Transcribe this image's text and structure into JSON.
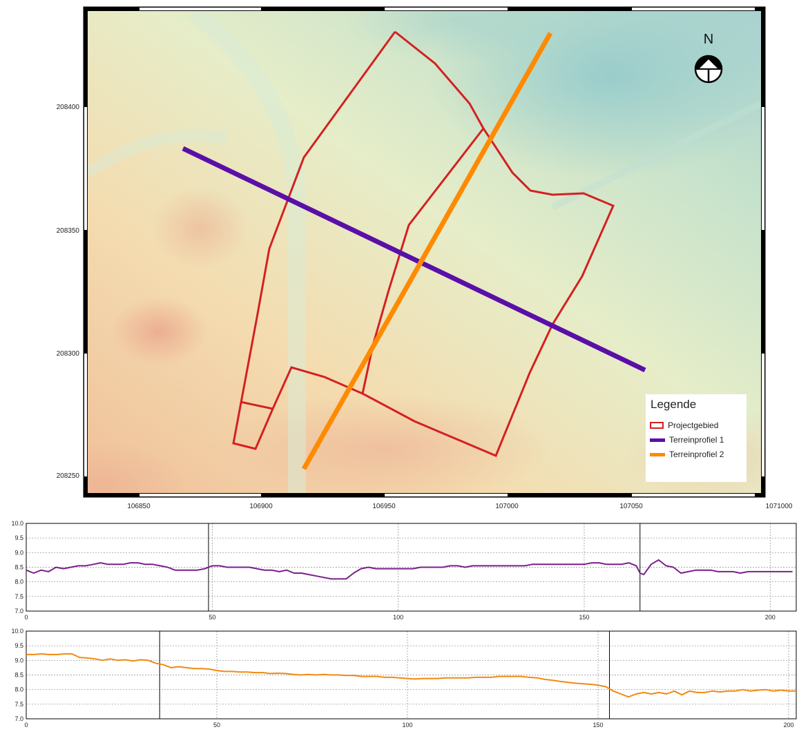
{
  "map": {
    "x_ticks": [
      "106850",
      "106900",
      "106950",
      "107000",
      "107050",
      "1071000"
    ],
    "y_ticks": [
      "208400",
      "208350",
      "208300",
      "208250"
    ],
    "north_label": "N",
    "colors": {
      "projectgebied": "#d42020",
      "terreinprofiel_1": "#5a0fa8",
      "terreinprofiel_2": "#ff8a00"
    }
  },
  "legend": {
    "title": "Legende",
    "items": [
      {
        "label": "Projectgebied",
        "symbol": "outline-box",
        "color": "#d42020"
      },
      {
        "label": "Terreinprofiel 1",
        "symbol": "line",
        "color": "#5a0fa8"
      },
      {
        "label": "Terreinprofiel 2",
        "symbol": "line",
        "color": "#ff8a00"
      }
    ]
  },
  "chart_data": [
    {
      "type": "line",
      "series": [
        {
          "color": "#7a1f8a",
          "x": [
            0,
            2,
            4,
            6,
            8,
            10,
            12,
            14,
            16,
            18,
            20,
            22,
            24,
            26,
            28,
            30,
            32,
            34,
            36,
            38,
            40,
            42,
            44,
            46,
            48,
            50,
            52,
            54,
            56,
            58,
            60,
            62,
            64,
            66,
            68,
            70,
            72,
            74,
            76,
            78,
            80,
            82,
            84,
            86,
            88,
            90,
            92,
            94,
            96,
            98,
            100,
            102,
            104,
            106,
            108,
            110,
            112,
            114,
            116,
            118,
            120,
            122,
            124,
            126,
            128,
            130,
            132,
            134,
            136,
            138,
            140,
            142,
            144,
            146,
            148,
            150,
            152,
            154,
            156,
            158,
            160,
            162,
            164,
            165,
            166,
            168,
            170,
            172,
            174,
            176,
            178,
            180,
            182,
            184,
            186,
            188,
            190,
            192,
            194,
            196,
            198,
            200,
            202,
            204,
            206
          ],
          "values": [
            8.4,
            8.3,
            8.4,
            8.35,
            8.5,
            8.45,
            8.5,
            8.55,
            8.55,
            8.6,
            8.65,
            8.6,
            8.6,
            8.6,
            8.65,
            8.65,
            8.6,
            8.6,
            8.55,
            8.5,
            8.4,
            8.4,
            8.4,
            8.4,
            8.45,
            8.55,
            8.55,
            8.5,
            8.5,
            8.5,
            8.5,
            8.45,
            8.4,
            8.4,
            8.35,
            8.4,
            8.3,
            8.3,
            8.25,
            8.2,
            8.15,
            8.1,
            8.1,
            8.1,
            8.3,
            8.45,
            8.5,
            8.45,
            8.45,
            8.45,
            8.45,
            8.45,
            8.45,
            8.5,
            8.5,
            8.5,
            8.5,
            8.55,
            8.55,
            8.5,
            8.55,
            8.55,
            8.55,
            8.55,
            8.55,
            8.55,
            8.55,
            8.55,
            8.6,
            8.6,
            8.6,
            8.6,
            8.6,
            8.6,
            8.6,
            8.6,
            8.65,
            8.65,
            8.6,
            8.6,
            8.6,
            8.65,
            8.55,
            8.3,
            8.25,
            8.6,
            8.75,
            8.55,
            8.5,
            8.3,
            8.35,
            8.4,
            8.4,
            8.4,
            8.35,
            8.35,
            8.35,
            8.3,
            8.35,
            8.35,
            8.35,
            8.35,
            8.35,
            8.35,
            8.35
          ]
        }
      ],
      "xlim": [
        0,
        207
      ],
      "ylim": [
        7.0,
        10.0
      ],
      "x_ticks": [
        0,
        50,
        100,
        150,
        200
      ],
      "y_ticks": [
        "7.0",
        "7.5",
        "8.0",
        "8.5",
        "9.0",
        "9.5",
        "10.0"
      ],
      "markers": [
        49,
        165
      ],
      "grid": true
    },
    {
      "type": "line",
      "series": [
        {
          "color": "#f08a10",
          "x": [
            0,
            2,
            4,
            6,
            8,
            10,
            12,
            14,
            16,
            18,
            20,
            22,
            24,
            26,
            28,
            30,
            32,
            34,
            36,
            38,
            40,
            42,
            44,
            46,
            48,
            50,
            52,
            54,
            56,
            58,
            60,
            62,
            64,
            66,
            68,
            70,
            72,
            74,
            76,
            78,
            80,
            82,
            84,
            86,
            88,
            90,
            92,
            94,
            96,
            98,
            100,
            102,
            104,
            106,
            108,
            110,
            112,
            114,
            116,
            118,
            120,
            122,
            124,
            126,
            128,
            130,
            132,
            134,
            136,
            138,
            140,
            142,
            144,
            146,
            148,
            150,
            152,
            154,
            156,
            158,
            160,
            162,
            164,
            166,
            168,
            170,
            172,
            174,
            176,
            178,
            180,
            182,
            184,
            186,
            188,
            190,
            192,
            194,
            196,
            198,
            200,
            202
          ],
          "values": [
            9.2,
            9.2,
            9.22,
            9.2,
            9.2,
            9.22,
            9.22,
            9.1,
            9.08,
            9.05,
            9.0,
            9.05,
            9.0,
            9.02,
            8.98,
            9.02,
            9.0,
            8.9,
            8.85,
            8.75,
            8.78,
            8.75,
            8.72,
            8.72,
            8.7,
            8.65,
            8.62,
            8.62,
            8.6,
            8.6,
            8.58,
            8.58,
            8.55,
            8.56,
            8.55,
            8.52,
            8.5,
            8.52,
            8.5,
            8.52,
            8.5,
            8.5,
            8.48,
            8.48,
            8.45,
            8.45,
            8.45,
            8.42,
            8.42,
            8.4,
            8.38,
            8.36,
            8.38,
            8.38,
            8.38,
            8.4,
            8.4,
            8.4,
            8.4,
            8.42,
            8.42,
            8.42,
            8.45,
            8.45,
            8.45,
            8.45,
            8.42,
            8.4,
            8.35,
            8.32,
            8.28,
            8.25,
            8.22,
            8.2,
            8.18,
            8.15,
            8.1,
            7.95,
            7.85,
            7.75,
            7.85,
            7.9,
            7.85,
            7.9,
            7.85,
            7.95,
            7.82,
            7.95,
            7.9,
            7.9,
            7.95,
            7.92,
            7.95,
            7.95,
            8.0,
            7.95,
            7.98,
            8.0,
            7.95,
            7.98,
            7.95,
            7.95
          ]
        }
      ],
      "xlim": [
        0,
        202
      ],
      "ylim": [
        7.0,
        10.0
      ],
      "x_ticks": [
        0,
        50,
        100,
        150,
        200
      ],
      "y_ticks": [
        "7.0",
        "7.5",
        "8.0",
        "8.5",
        "9.0",
        "9.5",
        "10.0"
      ],
      "markers": [
        35,
        153
      ],
      "grid": true
    }
  ]
}
